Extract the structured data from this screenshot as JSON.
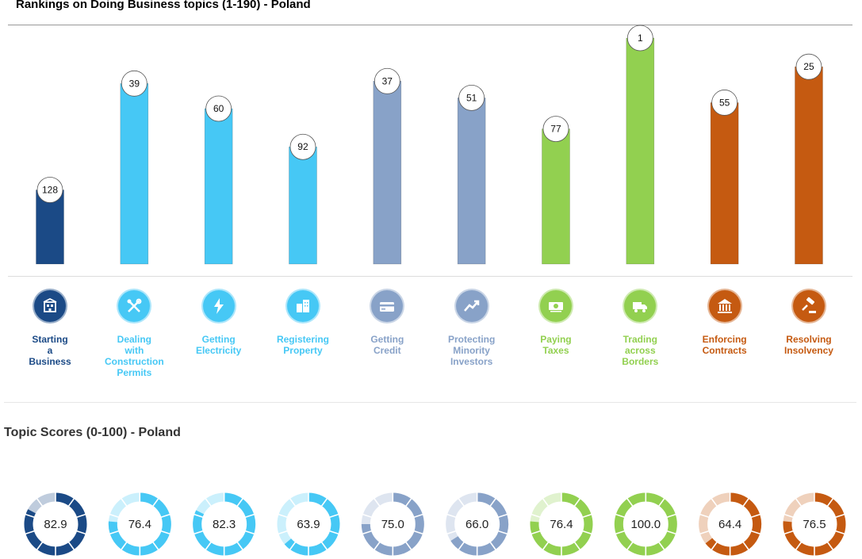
{
  "header": {
    "title": "Rankings on Doing Business topics (1-190) - Poland"
  },
  "scores_section": {
    "title": "Topic Scores (0-100) - Poland"
  },
  "topics": [
    {
      "label": "Starting\na\nBusiness",
      "color": "#1b4a86",
      "icon": "building-icon"
    },
    {
      "label": "Dealing\nwith\nConstruction\nPermits",
      "color": "#46c8f5",
      "icon": "tools-icon"
    },
    {
      "label": "Getting\nElectricity",
      "color": "#46c8f5",
      "icon": "lightning-icon"
    },
    {
      "label": "Registering\nProperty",
      "color": "#46c8f5",
      "icon": "buildings-icon"
    },
    {
      "label": "Getting\nCredit",
      "color": "#88a2c8",
      "icon": "credit-card-icon"
    },
    {
      "label": "Protecting\nMinority\nInvestors",
      "color": "#88a2c8",
      "icon": "trend-up-icon"
    },
    {
      "label": "Paying\nTaxes",
      "color": "#92d050",
      "icon": "money-icon"
    },
    {
      "label": "Trading\nacross\nBorders",
      "color": "#92d050",
      "icon": "truck-icon"
    },
    {
      "label": "Enforcing\nContracts",
      "color": "#c55a11",
      "icon": "courthouse-icon"
    },
    {
      "label": "Resolving\nInsolvency",
      "color": "#c55a11",
      "icon": "gavel-icon"
    }
  ],
  "chart_data": [
    {
      "type": "bar",
      "title": "Rankings on Doing Business topics (1-190) - Poland",
      "categories": [
        "Starting a Business",
        "Dealing with Construction Permits",
        "Getting Electricity",
        "Registering Property",
        "Getting Credit",
        "Protecting Minority Investors",
        "Paying Taxes",
        "Trading across Borders",
        "Enforcing Contracts",
        "Resolving Insolvency"
      ],
      "values": [
        128,
        39,
        60,
        92,
        37,
        51,
        77,
        1,
        55,
        25
      ],
      "scale": "rank (lower value = taller bar)",
      "ylim": [
        1,
        190
      ],
      "grid": false
    },
    {
      "type": "donut",
      "title": "Topic Scores (0-100) - Poland",
      "categories": [
        "Starting a Business",
        "Dealing with Construction Permits",
        "Getting Electricity",
        "Registering Property",
        "Getting Credit",
        "Protecting Minority Investors",
        "Paying Taxes",
        "Trading across Borders",
        "Enforcing Contracts",
        "Resolving Insolvency"
      ],
      "values": [
        82.9,
        76.4,
        82.3,
        63.9,
        75.0,
        66.0,
        76.4,
        100.0,
        64.4,
        76.5
      ],
      "labels": [
        "82.9",
        "76.4",
        "82.3",
        "63.9",
        "75.0",
        "66.0",
        "76.4",
        "100.0",
        "64.4",
        "76.5"
      ],
      "range": [
        0,
        100
      ]
    }
  ]
}
